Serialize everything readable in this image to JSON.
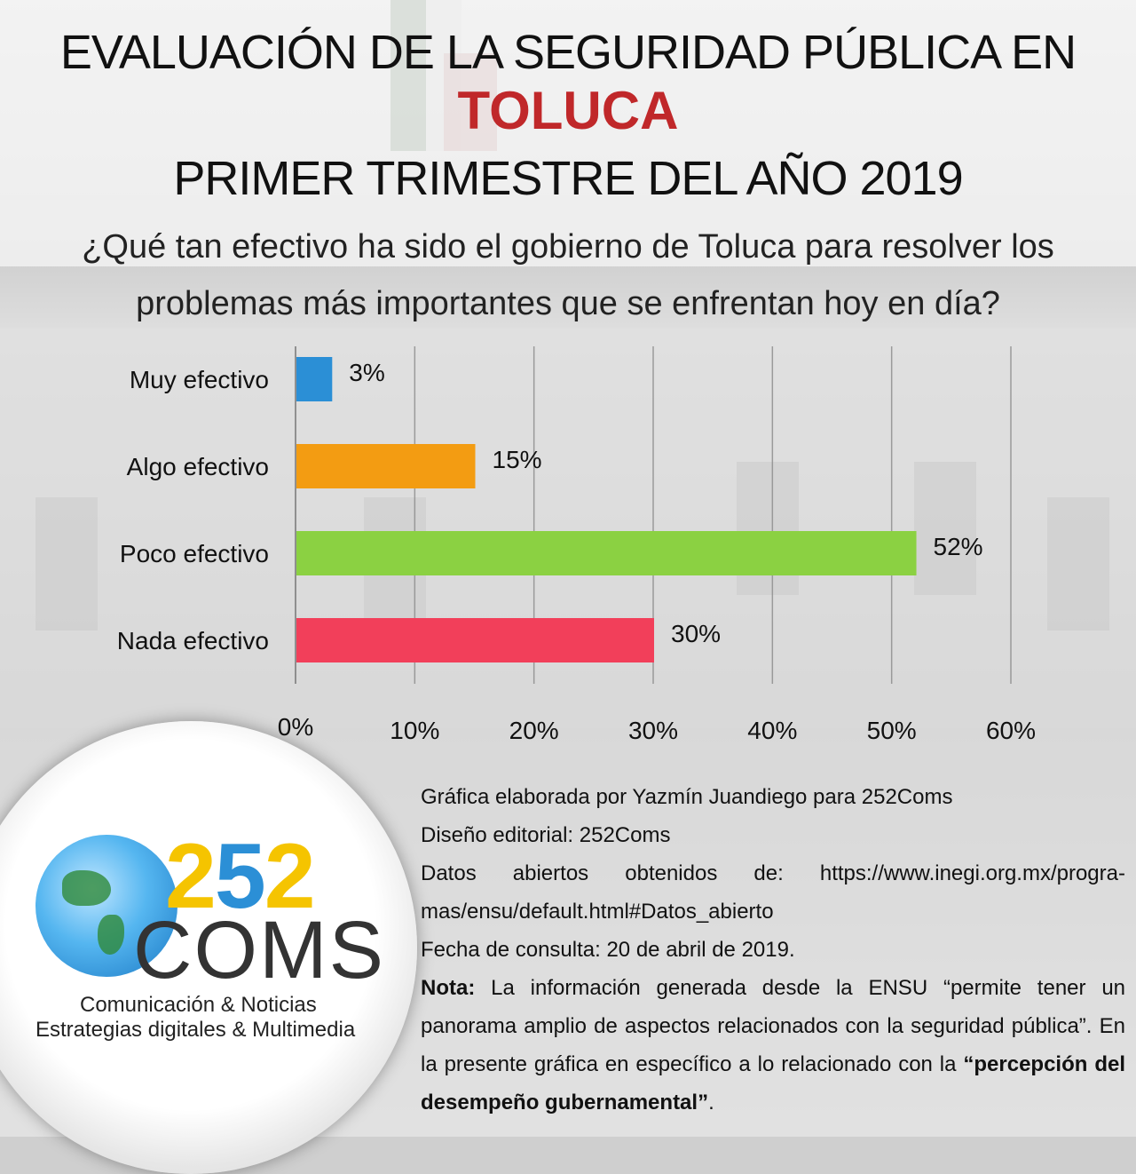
{
  "header": {
    "title_line1": "EVALUACIÓN DE LA SEGURIDAD PÚBLICA EN",
    "title_city": "TOLUCA",
    "title_line3": "PRIMER TRIMESTRE DEL AÑO 2019",
    "question": "¿Qué tan efectivo ha sido el gobierno de Toluca para resolver los problemas más importantes que se enfrentan hoy en día?"
  },
  "chart_data": {
    "type": "bar",
    "orientation": "horizontal",
    "categories": [
      "Muy efectivo",
      "Algo efectivo",
      "Poco efectivo",
      "Nada efectivo"
    ],
    "values": [
      3,
      15,
      52,
      30
    ],
    "value_labels": [
      "3%",
      "15%",
      "52%",
      "30%"
    ],
    "bar_colors": [
      "#2b8fd6",
      "#f39c12",
      "#8bd142",
      "#f23f5a"
    ],
    "xlim": [
      0,
      60
    ],
    "x_ticks": [
      "0%",
      "10%",
      "20%",
      "30%",
      "40%",
      "50%",
      "60%"
    ],
    "grid": true
  },
  "logo": {
    "digit1": "2",
    "digit2": "5",
    "digit3": "2",
    "wordmark": "COMS",
    "tagline1": "Comunicación & Noticias",
    "tagline2": "Estrategias digitales & Multimedia"
  },
  "credits": {
    "line1": "Gráfica elaborada por Yazmín Juandiego para 252Coms",
    "line2": "Diseño editorial: 252Coms",
    "line3": "Datos abiertos obtenidos de: https://www.inegi.org.mx/progra-mas/ensu/default.html#Datos_abierto",
    "line4": "Fecha de consulta: 20 de abril de 2019.",
    "note_label": "Nota:",
    "note_text": "La información generada desde la ENSU “permite tener un panorama amplio de aspectos relacionados con la seguridad pública”. En la presente gráfica en específico a lo relacionado con la",
    "note_emphasis": "“percepción del desempeño gubernamental”",
    "note_end": "."
  },
  "colors": {
    "title_accent": "#c0282a"
  }
}
